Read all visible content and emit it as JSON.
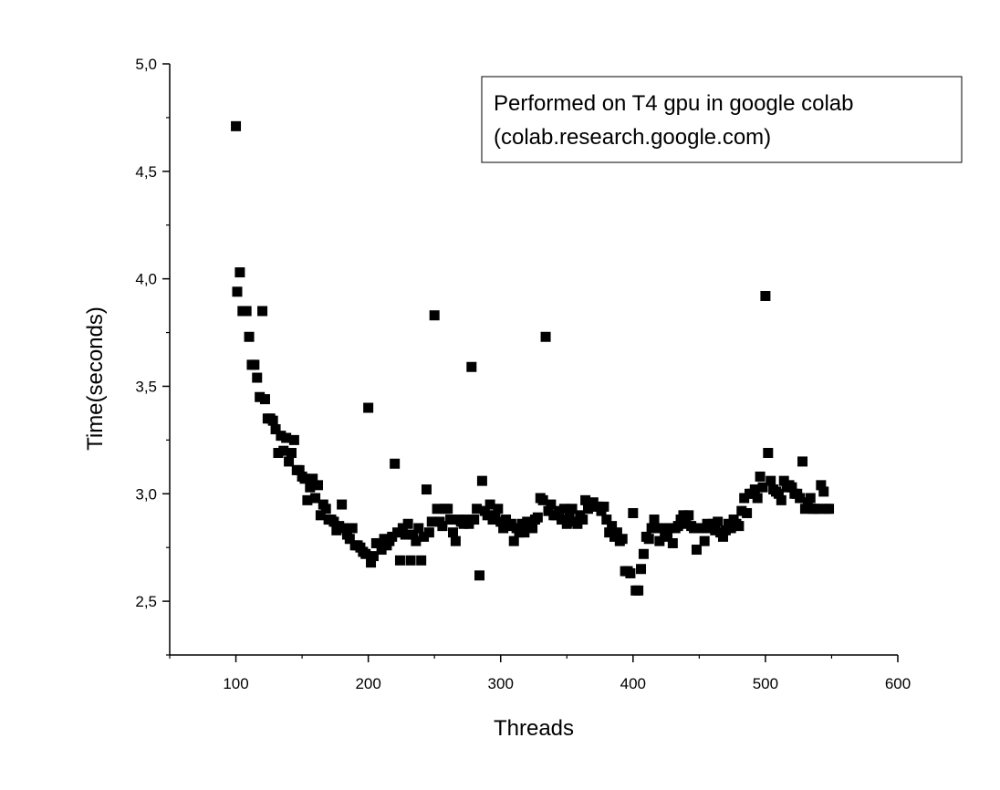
{
  "chart_data": {
    "type": "scatter",
    "title": "",
    "xlabel": "Threads",
    "ylabel": "Time(seconds)",
    "xlim": [
      50,
      600
    ],
    "ylim": [
      2.25,
      5.0
    ],
    "x_ticks": [
      100,
      200,
      300,
      400,
      500,
      600
    ],
    "x_tick_labels": [
      "100",
      "200",
      "300",
      "400",
      "500",
      "600"
    ],
    "y_ticks": [
      2.5,
      3.0,
      3.5,
      4.0,
      4.5,
      5.0
    ],
    "y_tick_labels": [
      "2,5",
      "3,0",
      "3,5",
      "4,0",
      "4,5",
      "5,0"
    ],
    "grid": false,
    "legend": null,
    "annotation": {
      "position": "top-right",
      "lines": [
        "Performed on T4 gpu in google colab",
        "(colab.research.google.com)"
      ]
    },
    "marker": "square",
    "marker_color": "#000000",
    "points": [
      [
        100,
        4.71
      ],
      [
        101,
        3.94
      ],
      [
        103,
        4.03
      ],
      [
        105,
        3.85
      ],
      [
        108,
        3.85
      ],
      [
        110,
        3.73
      ],
      [
        112,
        3.6
      ],
      [
        114,
        3.6
      ],
      [
        116,
        3.54
      ],
      [
        118,
        3.45
      ],
      [
        120,
        3.85
      ],
      [
        122,
        3.44
      ],
      [
        124,
        3.35
      ],
      [
        126,
        3.35
      ],
      [
        128,
        3.34
      ],
      [
        130,
        3.3
      ],
      [
        132,
        3.19
      ],
      [
        134,
        3.27
      ],
      [
        136,
        3.2
      ],
      [
        138,
        3.26
      ],
      [
        140,
        3.15
      ],
      [
        142,
        3.19
      ],
      [
        144,
        3.25
      ],
      [
        146,
        3.11
      ],
      [
        148,
        3.11
      ],
      [
        150,
        3.08
      ],
      [
        152,
        3.07
      ],
      [
        154,
        2.97
      ],
      [
        156,
        3.03
      ],
      [
        158,
        3.07
      ],
      [
        160,
        2.98
      ],
      [
        162,
        3.04
      ],
      [
        164,
        2.9
      ],
      [
        166,
        2.95
      ],
      [
        168,
        2.93
      ],
      [
        170,
        2.88
      ],
      [
        172,
        2.88
      ],
      [
        174,
        2.87
      ],
      [
        176,
        2.83
      ],
      [
        178,
        2.85
      ],
      [
        180,
        2.95
      ],
      [
        182,
        2.84
      ],
      [
        184,
        2.81
      ],
      [
        186,
        2.79
      ],
      [
        188,
        2.84
      ],
      [
        190,
        2.76
      ],
      [
        192,
        2.76
      ],
      [
        194,
        2.75
      ],
      [
        196,
        2.73
      ],
      [
        198,
        2.72
      ],
      [
        200,
        3.4
      ],
      [
        202,
        2.68
      ],
      [
        204,
        2.71
      ],
      [
        206,
        2.77
      ],
      [
        208,
        2.77
      ],
      [
        210,
        2.74
      ],
      [
        212,
        2.79
      ],
      [
        214,
        2.76
      ],
      [
        216,
        2.78
      ],
      [
        218,
        2.8
      ],
      [
        220,
        3.14
      ],
      [
        222,
        2.82
      ],
      [
        224,
        2.69
      ],
      [
        226,
        2.84
      ],
      [
        228,
        2.81
      ],
      [
        230,
        2.86
      ],
      [
        232,
        2.69
      ],
      [
        234,
        2.81
      ],
      [
        236,
        2.78
      ],
      [
        238,
        2.84
      ],
      [
        240,
        2.69
      ],
      [
        242,
        2.8
      ],
      [
        244,
        3.02
      ],
      [
        246,
        2.82
      ],
      [
        248,
        2.87
      ],
      [
        250,
        3.83
      ],
      [
        252,
        2.93
      ],
      [
        254,
        2.87
      ],
      [
        256,
        2.85
      ],
      [
        258,
        2.93
      ],
      [
        260,
        2.93
      ],
      [
        262,
        2.88
      ],
      [
        264,
        2.82
      ],
      [
        266,
        2.78
      ],
      [
        268,
        2.88
      ],
      [
        270,
        2.87
      ],
      [
        272,
        2.86
      ],
      [
        274,
        2.88
      ],
      [
        276,
        2.86
      ],
      [
        278,
        3.59
      ],
      [
        280,
        2.88
      ],
      [
        282,
        2.93
      ],
      [
        284,
        2.62
      ],
      [
        286,
        3.06
      ],
      [
        288,
        2.92
      ],
      [
        290,
        2.9
      ],
      [
        292,
        2.95
      ],
      [
        294,
        2.88
      ],
      [
        296,
        2.9
      ],
      [
        298,
        2.93
      ],
      [
        300,
        2.87
      ],
      [
        302,
        2.84
      ],
      [
        304,
        2.88
      ],
      [
        306,
        2.85
      ],
      [
        308,
        2.86
      ],
      [
        310,
        2.78
      ],
      [
        312,
        2.84
      ],
      [
        314,
        2.82
      ],
      [
        316,
        2.86
      ],
      [
        318,
        2.82
      ],
      [
        320,
        2.87
      ],
      [
        322,
        2.84
      ],
      [
        324,
        2.84
      ],
      [
        326,
        2.88
      ],
      [
        328,
        2.89
      ],
      [
        330,
        2.98
      ],
      [
        332,
        2.97
      ],
      [
        334,
        3.73
      ],
      [
        336,
        2.92
      ],
      [
        338,
        2.95
      ],
      [
        340,
        2.9
      ],
      [
        342,
        2.9
      ],
      [
        344,
        2.92
      ],
      [
        346,
        2.88
      ],
      [
        348,
        2.93
      ],
      [
        350,
        2.86
      ],
      [
        352,
        2.9
      ],
      [
        354,
        2.93
      ],
      [
        356,
        2.87
      ],
      [
        358,
        2.86
      ],
      [
        360,
        2.9
      ],
      [
        362,
        2.88
      ],
      [
        364,
        2.97
      ],
      [
        366,
        2.93
      ],
      [
        368,
        2.95
      ],
      [
        370,
        2.96
      ],
      [
        372,
        2.94
      ],
      [
        374,
        2.94
      ],
      [
        376,
        2.92
      ],
      [
        378,
        2.94
      ],
      [
        380,
        2.88
      ],
      [
        382,
        2.82
      ],
      [
        384,
        2.85
      ],
      [
        386,
        2.8
      ],
      [
        388,
        2.82
      ],
      [
        390,
        2.78
      ],
      [
        392,
        2.79
      ],
      [
        394,
        2.64
      ],
      [
        396,
        2.64
      ],
      [
        398,
        2.63
      ],
      [
        400,
        2.91
      ],
      [
        402,
        2.55
      ],
      [
        404,
        2.55
      ],
      [
        406,
        2.65
      ],
      [
        408,
        2.72
      ],
      [
        410,
        2.8
      ],
      [
        412,
        2.79
      ],
      [
        414,
        2.84
      ],
      [
        416,
        2.88
      ],
      [
        418,
        2.84
      ],
      [
        420,
        2.78
      ],
      [
        422,
        2.84
      ],
      [
        424,
        2.82
      ],
      [
        426,
        2.8
      ],
      [
        428,
        2.84
      ],
      [
        430,
        2.77
      ],
      [
        432,
        2.84
      ],
      [
        434,
        2.85
      ],
      [
        436,
        2.88
      ],
      [
        438,
        2.9
      ],
      [
        440,
        2.86
      ],
      [
        442,
        2.9
      ],
      [
        444,
        2.85
      ],
      [
        446,
        2.84
      ],
      [
        448,
        2.74
      ],
      [
        450,
        2.84
      ],
      [
        452,
        2.84
      ],
      [
        454,
        2.78
      ],
      [
        456,
        2.86
      ],
      [
        458,
        2.84
      ],
      [
        460,
        2.86
      ],
      [
        462,
        2.83
      ],
      [
        464,
        2.87
      ],
      [
        466,
        2.82
      ],
      [
        468,
        2.8
      ],
      [
        470,
        2.83
      ],
      [
        472,
        2.86
      ],
      [
        474,
        2.84
      ],
      [
        476,
        2.88
      ],
      [
        478,
        2.86
      ],
      [
        480,
        2.85
      ],
      [
        482,
        2.92
      ],
      [
        484,
        2.98
      ],
      [
        486,
        2.91
      ],
      [
        488,
        3.0
      ],
      [
        490,
        3.0
      ],
      [
        492,
        3.02
      ],
      [
        494,
        2.98
      ],
      [
        496,
        3.08
      ],
      [
        498,
        3.03
      ],
      [
        500,
        3.92
      ],
      [
        502,
        3.19
      ],
      [
        504,
        3.06
      ],
      [
        506,
        3.02
      ],
      [
        508,
        3.01
      ],
      [
        510,
        3.0
      ],
      [
        512,
        2.97
      ],
      [
        514,
        3.06
      ],
      [
        516,
        3.03
      ],
      [
        518,
        3.04
      ],
      [
        520,
        3.03
      ],
      [
        522,
        3.0
      ],
      [
        524,
        3.0
      ],
      [
        526,
        2.98
      ],
      [
        528,
        3.15
      ],
      [
        530,
        2.93
      ],
      [
        532,
        2.96
      ],
      [
        534,
        2.98
      ],
      [
        536,
        2.93
      ],
      [
        538,
        2.93
      ],
      [
        540,
        2.93
      ],
      [
        542,
        3.04
      ],
      [
        544,
        3.01
      ],
      [
        546,
        2.93
      ],
      [
        548,
        2.93
      ]
    ]
  }
}
